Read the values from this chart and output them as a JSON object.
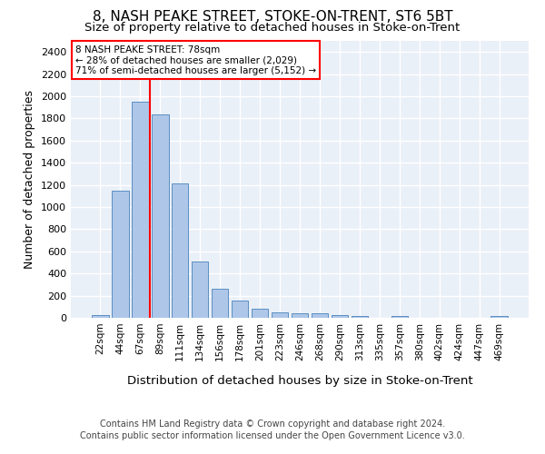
{
  "title1": "8, NASH PEAKE STREET, STOKE-ON-TRENT, ST6 5BT",
  "title2": "Size of property relative to detached houses in Stoke-on-Trent",
  "xlabel": "Distribution of detached houses by size in Stoke-on-Trent",
  "ylabel": "Number of detached properties",
  "categories": [
    "22sqm",
    "44sqm",
    "67sqm",
    "89sqm",
    "111sqm",
    "134sqm",
    "156sqm",
    "178sqm",
    "201sqm",
    "223sqm",
    "246sqm",
    "268sqm",
    "290sqm",
    "313sqm",
    "335sqm",
    "357sqm",
    "380sqm",
    "402sqm",
    "424sqm",
    "447sqm",
    "469sqm"
  ],
  "values": [
    28,
    1150,
    1950,
    1835,
    1210,
    510,
    265,
    155,
    80,
    50,
    43,
    43,
    22,
    18,
    0,
    18,
    0,
    0,
    0,
    0,
    18
  ],
  "bar_color": "#aec6e8",
  "bar_edge_color": "#5a8fc2",
  "vline_x": 2.5,
  "vline_color": "red",
  "annotation_text": "8 NASH PEAKE STREET: 78sqm\n← 28% of detached houses are smaller (2,029)\n71% of semi-detached houses are larger (5,152) →",
  "ylim": [
    0,
    2500
  ],
  "yticks": [
    0,
    200,
    400,
    600,
    800,
    1000,
    1200,
    1400,
    1600,
    1800,
    2000,
    2200,
    2400
  ],
  "bg_color": "#eaf0f8",
  "grid_color": "white",
  "footer1": "Contains HM Land Registry data © Crown copyright and database right 2024.",
  "footer2": "Contains public sector information licensed under the Open Government Licence v3.0."
}
